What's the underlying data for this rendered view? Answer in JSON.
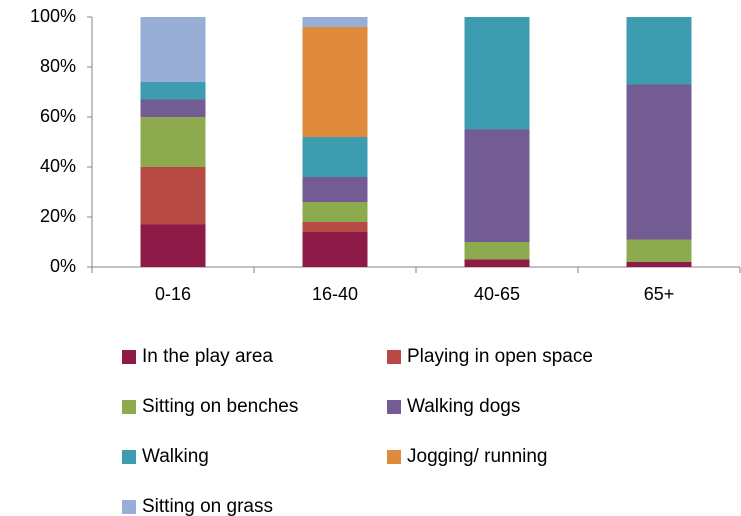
{
  "chart_data": {
    "type": "stacked_bar",
    "categories": [
      "0-16",
      "16-40",
      "40-65",
      "65+"
    ],
    "series": [
      {
        "name": "In the play area",
        "color": "#8e1b47",
        "values": [
          17,
          14,
          3,
          2
        ]
      },
      {
        "name": "Playing in open space",
        "color": "#b84a45",
        "values": [
          23,
          4,
          0,
          0
        ]
      },
      {
        "name": "Sitting on benches",
        "color": "#8daa4f",
        "values": [
          20,
          8,
          7,
          9
        ]
      },
      {
        "name": "Walking dogs",
        "color": "#735b93",
        "values": [
          7,
          10,
          45,
          62
        ]
      },
      {
        "name": "Walking",
        "color": "#3d9cb0",
        "values": [
          7,
          16,
          45,
          27
        ]
      },
      {
        "name": "Jogging/ running",
        "color": "#e08a3c",
        "values": [
          0,
          44,
          0,
          0
        ]
      },
      {
        "name": "Sitting on grass",
        "color": "#98aed6",
        "values": [
          26,
          4,
          0,
          0
        ]
      }
    ],
    "ylim": [
      0,
      100
    ],
    "yticks": [
      {
        "value": 0,
        "label": "0%"
      },
      {
        "value": 20,
        "label": "20%"
      },
      {
        "value": 40,
        "label": "40%"
      },
      {
        "value": 60,
        "label": "60%"
      },
      {
        "value": 80,
        "label": "80%"
      },
      {
        "value": 100,
        "label": "100%"
      }
    ],
    "legend": "bottom"
  }
}
